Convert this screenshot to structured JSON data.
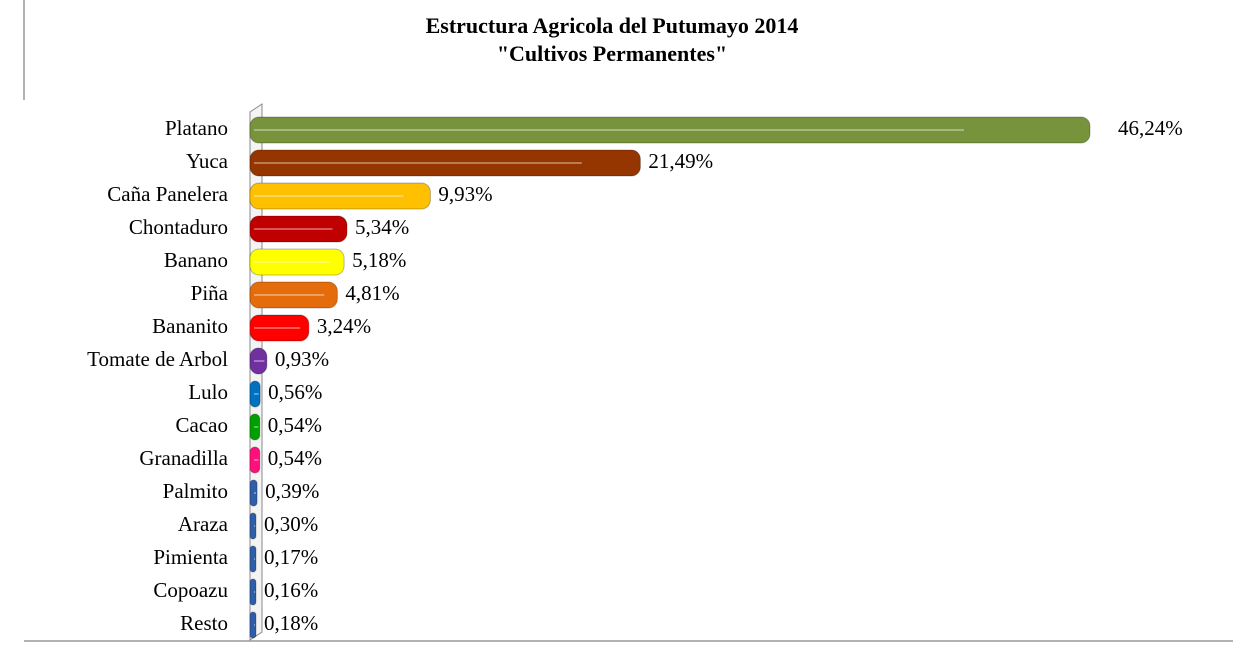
{
  "chart_data": {
    "type": "bar",
    "orientation": "horizontal",
    "title": "Estructura Agricola del Putumayo 2014",
    "subtitle": "\"Cultivos Permanentes\"",
    "categories": [
      "Platano",
      "Yuca",
      "Caña Panelera",
      "Chontaduro",
      "Banano",
      "Piña",
      "Bananito",
      "Tomate de Arbol",
      "Lulo",
      "Cacao",
      "Granadilla",
      "Palmito",
      "Araza",
      "Pimienta",
      "Copoazu",
      "Resto"
    ],
    "values": [
      46.24,
      21.49,
      9.93,
      5.34,
      5.18,
      4.81,
      3.24,
      0.93,
      0.56,
      0.54,
      0.54,
      0.39,
      0.3,
      0.17,
      0.16,
      0.18
    ],
    "value_labels": [
      "46,24%",
      "21,49%",
      "9,93%",
      "5,34%",
      "5,18%",
      "4,81%",
      "3,24%",
      "0,93%",
      "0,56%",
      "0,54%",
      "0,54%",
      "0,39%",
      "0,30%",
      "0,17%",
      "0,16%",
      "0,18%"
    ],
    "colors": [
      "#77933c",
      "#953500",
      "#ffc000",
      "#c00000",
      "#ffff00",
      "#e46c0a",
      "#ff0000",
      "#7030a0",
      "#0070c0",
      "#00a000",
      "#ff0f7b",
      "#2e5ea8",
      "#2e5ea8",
      "#2e5ea8",
      "#2e5ea8",
      "#2e5ea8"
    ]
  }
}
